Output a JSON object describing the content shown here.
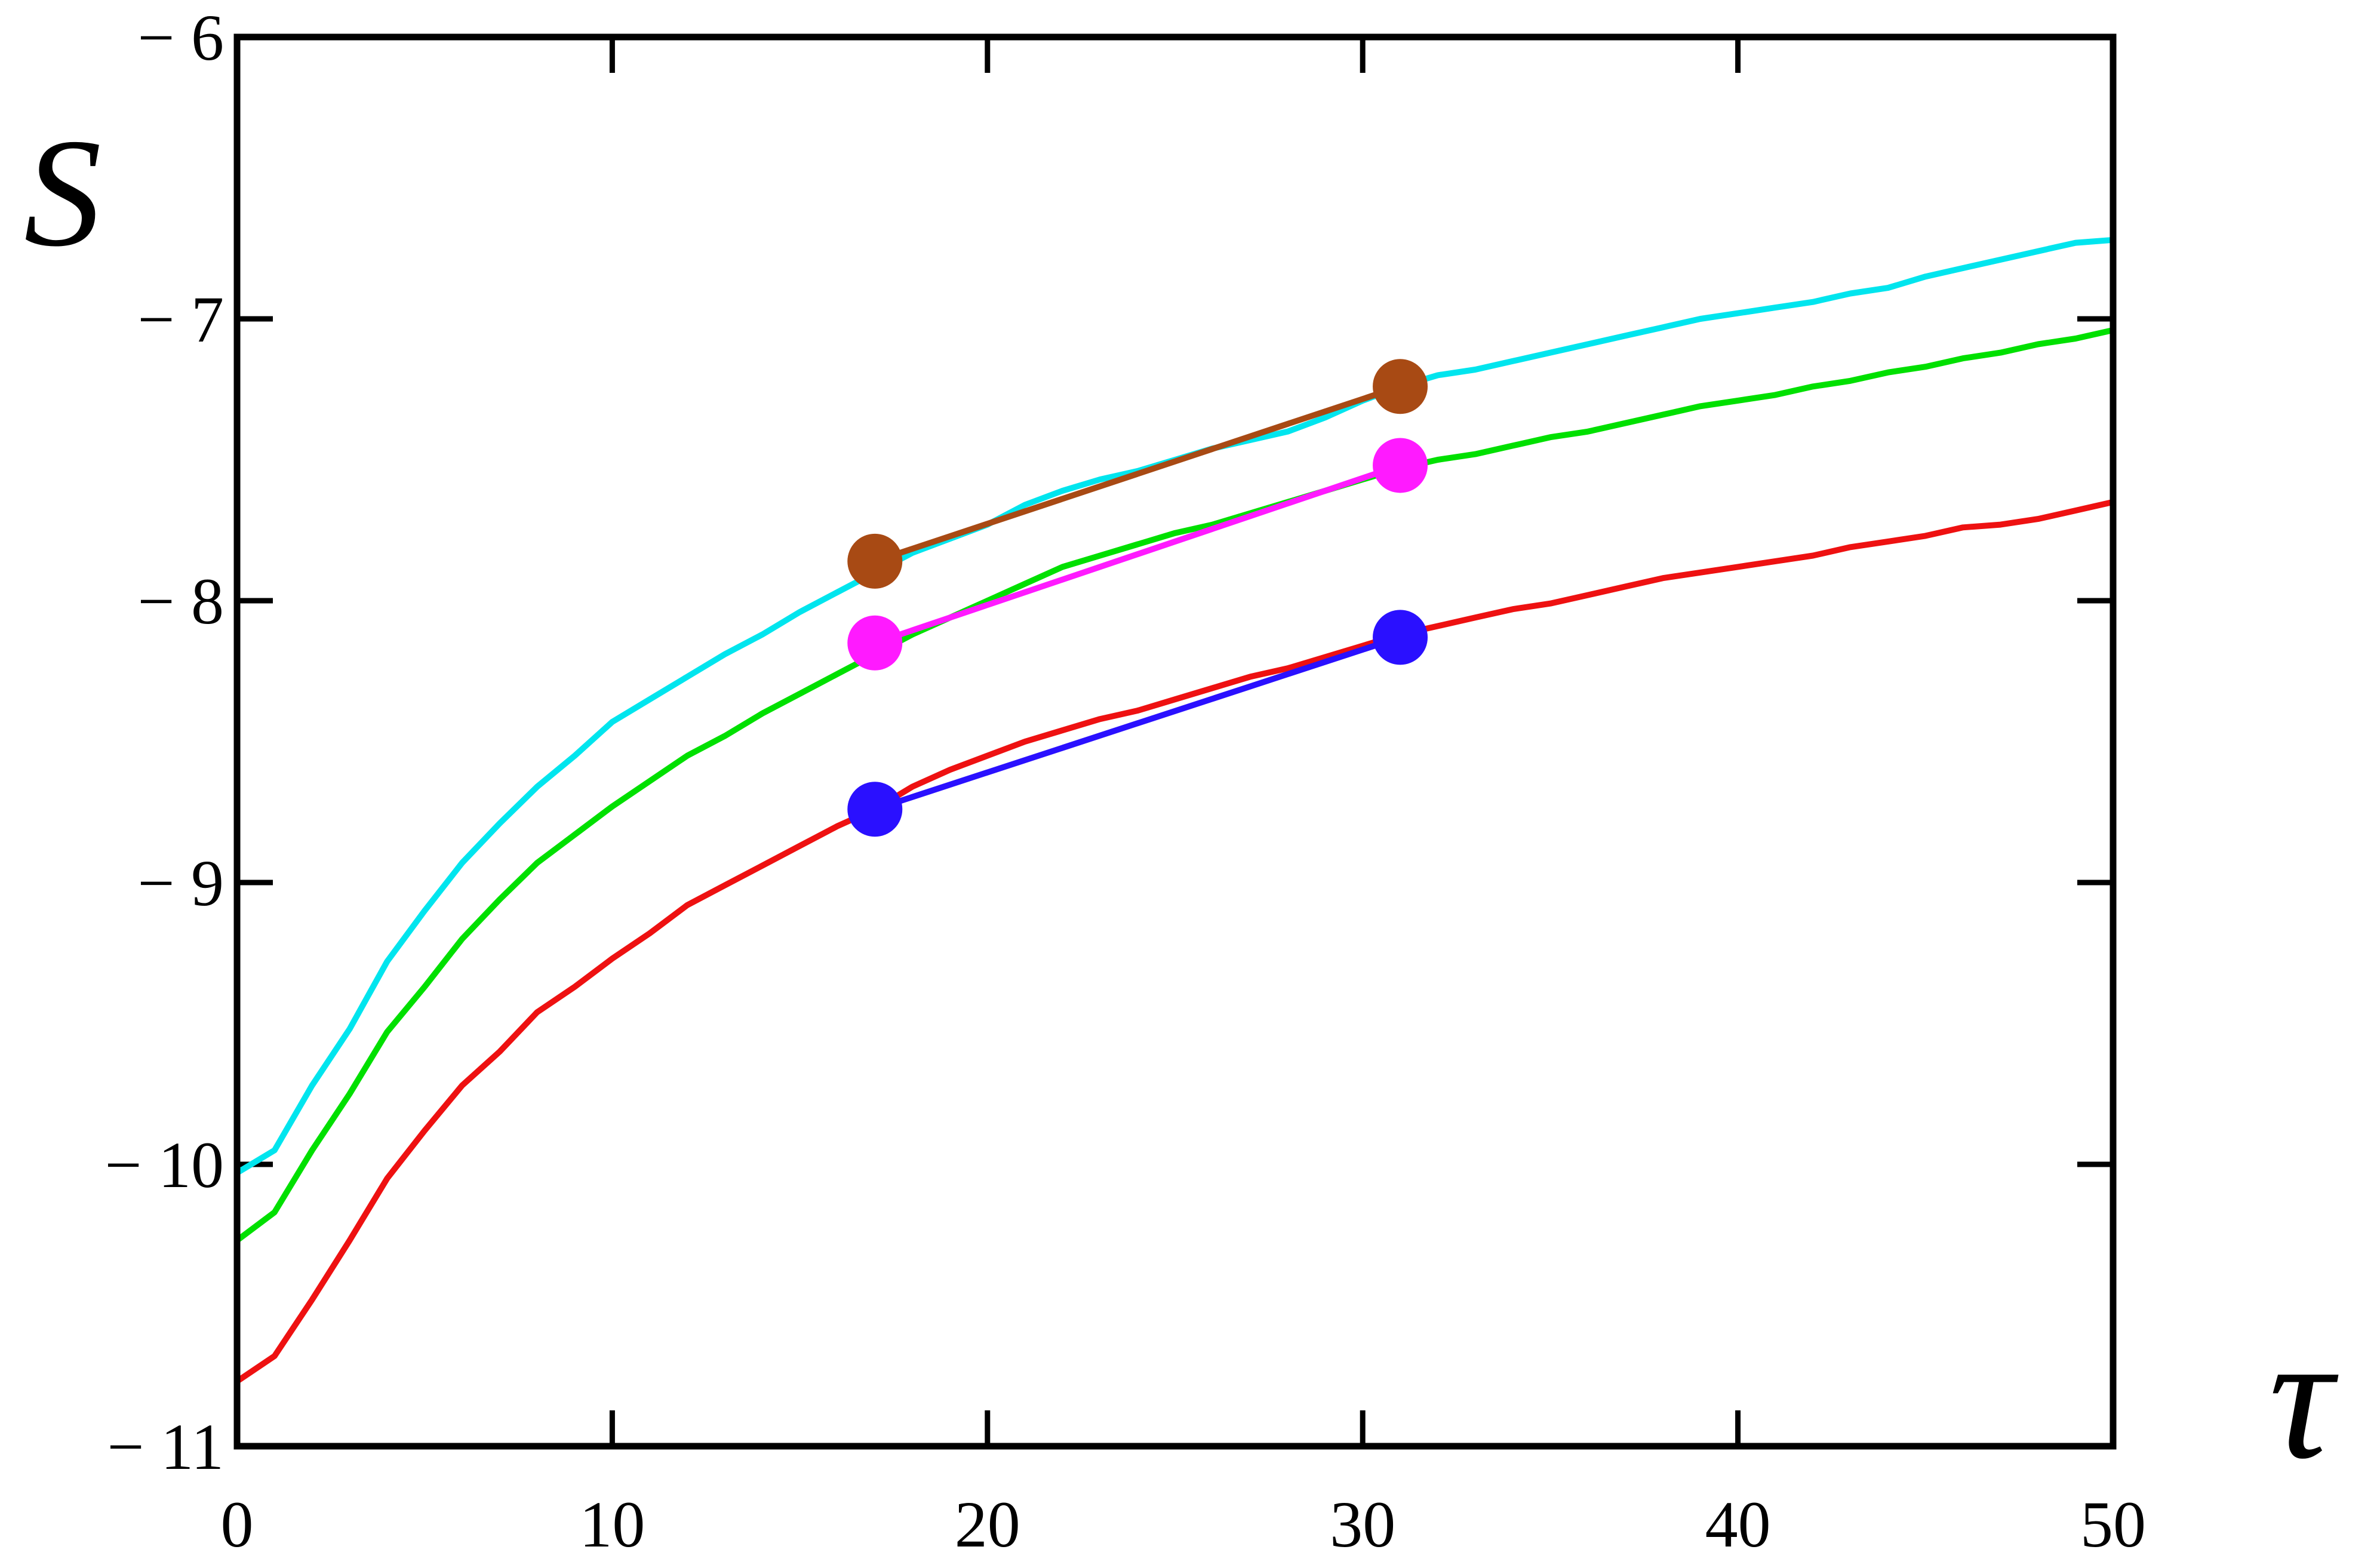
{
  "chart_data": {
    "type": "line",
    "xlabel": "τ",
    "ylabel": "S",
    "xlim": [
      0,
      50
    ],
    "ylim": [
      -11,
      -6
    ],
    "xticks": [
      0,
      10,
      20,
      30,
      40,
      50
    ],
    "xtick_labels": [
      "0",
      "10",
      "20",
      "30",
      "40",
      "50"
    ],
    "yticks": [
      -11,
      -10,
      -9,
      -8,
      -7,
      -6
    ],
    "ytick_labels": [
      "− 11",
      "− 10",
      "− 9",
      "− 8",
      "− 7",
      "− 6"
    ],
    "grid": false,
    "legend": "none",
    "series": [
      {
        "color": "#00e5ee",
        "x": [
          0,
          1,
          2,
          3,
          4,
          5,
          6,
          7,
          8,
          9,
          10,
          11,
          12,
          13,
          14,
          15,
          16,
          17,
          18,
          19,
          20,
          21,
          22,
          23,
          24,
          25,
          26,
          27,
          28,
          29,
          30,
          31,
          32,
          33,
          34,
          35,
          36,
          37,
          38,
          39,
          40,
          41,
          42,
          43,
          44,
          45,
          46,
          47,
          48,
          49,
          50
        ],
        "y": [
          -10.03,
          -9.95,
          -9.72,
          -9.52,
          -9.28,
          -9.1,
          -8.93,
          -8.79,
          -8.66,
          -8.55,
          -8.43,
          -8.35,
          -8.27,
          -8.19,
          -8.12,
          -8.04,
          -7.97,
          -7.9,
          -7.83,
          -7.78,
          -7.73,
          -7.66,
          -7.61,
          -7.57,
          -7.54,
          -7.5,
          -7.46,
          -7.43,
          -7.4,
          -7.35,
          -7.29,
          -7.24,
          -7.2,
          -7.18,
          -7.15,
          -7.12,
          -7.09,
          -7.06,
          -7.03,
          -7.0,
          -6.98,
          -6.96,
          -6.94,
          -6.91,
          -6.89,
          -6.85,
          -6.82,
          -6.79,
          -6.76,
          -6.73,
          -6.72
        ]
      },
      {
        "color": "#00e000",
        "x": [
          0,
          1,
          2,
          3,
          4,
          5,
          6,
          7,
          8,
          9,
          10,
          11,
          12,
          13,
          14,
          15,
          16,
          17,
          18,
          19,
          20,
          21,
          22,
          23,
          24,
          25,
          26,
          27,
          28,
          29,
          30,
          31,
          32,
          33,
          34,
          35,
          36,
          37,
          38,
          39,
          40,
          41,
          42,
          43,
          44,
          45,
          46,
          47,
          48,
          49,
          50
        ],
        "y": [
          -10.27,
          -10.17,
          -9.95,
          -9.75,
          -9.53,
          -9.37,
          -9.2,
          -9.06,
          -8.93,
          -8.83,
          -8.73,
          -8.64,
          -8.55,
          -8.48,
          -8.4,
          -8.33,
          -8.26,
          -8.19,
          -8.12,
          -8.06,
          -8.0,
          -7.94,
          -7.88,
          -7.84,
          -7.8,
          -7.76,
          -7.73,
          -7.69,
          -7.65,
          -7.61,
          -7.57,
          -7.53,
          -7.5,
          -7.48,
          -7.45,
          -7.42,
          -7.4,
          -7.37,
          -7.34,
          -7.31,
          -7.29,
          -7.27,
          -7.24,
          -7.22,
          -7.19,
          -7.17,
          -7.14,
          -7.12,
          -7.09,
          -7.07,
          -7.04
        ]
      },
      {
        "color": "#ee1111",
        "x": [
          0,
          1,
          2,
          3,
          4,
          5,
          6,
          7,
          8,
          9,
          10,
          11,
          12,
          13,
          14,
          15,
          16,
          17,
          18,
          19,
          20,
          21,
          22,
          23,
          24,
          25,
          26,
          27,
          28,
          29,
          30,
          31,
          32,
          33,
          34,
          35,
          36,
          37,
          38,
          39,
          40,
          41,
          42,
          43,
          44,
          45,
          46,
          47,
          48,
          49,
          50
        ],
        "y": [
          -10.77,
          -10.68,
          -10.48,
          -10.27,
          -10.05,
          -9.88,
          -9.72,
          -9.6,
          -9.46,
          -9.37,
          -9.27,
          -9.18,
          -9.08,
          -9.01,
          -8.94,
          -8.87,
          -8.8,
          -8.74,
          -8.66,
          -8.6,
          -8.55,
          -8.5,
          -8.46,
          -8.42,
          -8.39,
          -8.35,
          -8.31,
          -8.27,
          -8.24,
          -8.2,
          -8.16,
          -8.12,
          -8.09,
          -8.06,
          -8.03,
          -8.01,
          -7.98,
          -7.95,
          -7.92,
          -7.9,
          -7.88,
          -7.86,
          -7.84,
          -7.81,
          -7.79,
          -7.77,
          -7.74,
          -7.73,
          -7.71,
          -7.68,
          -7.65
        ]
      }
    ],
    "fit_segments": [
      {
        "color": "#a84a14",
        "x": [
          17,
          31
        ],
        "y": [
          -7.86,
          -7.24
        ]
      },
      {
        "color": "#ff1aff",
        "x": [
          17,
          31
        ],
        "y": [
          -8.15,
          -7.52
        ]
      },
      {
        "color": "#2a10ff",
        "x": [
          17,
          31
        ],
        "y": [
          -8.74,
          -8.13
        ]
      }
    ]
  }
}
